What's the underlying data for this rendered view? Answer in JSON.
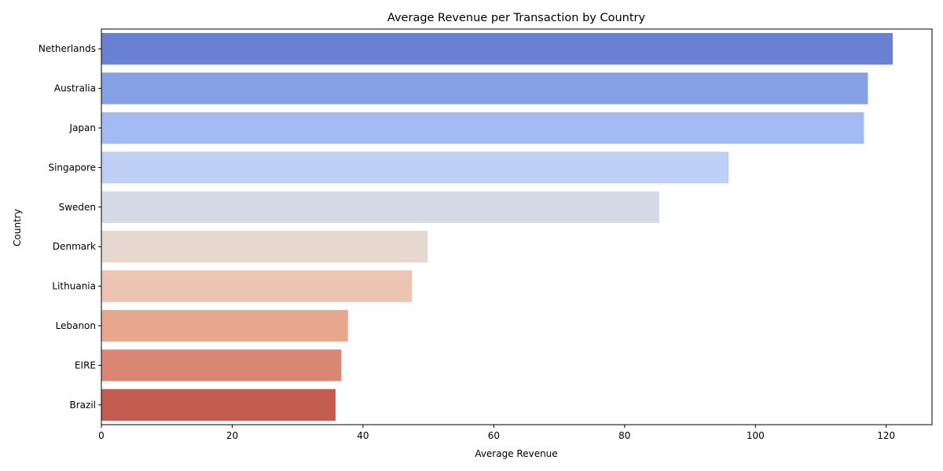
{
  "chart_data": {
    "type": "bar",
    "orientation": "horizontal",
    "title": "Average Revenue per Transaction by Country",
    "xlabel": "Average Revenue",
    "ylabel": "Country",
    "categories": [
      "Netherlands",
      "Australia",
      "Japan",
      "Singapore",
      "Sweden",
      "Denmark",
      "Lithuania",
      "Lebanon",
      "EIRE",
      "Brazil"
    ],
    "values": [
      121.0,
      117.2,
      116.6,
      95.9,
      85.3,
      49.9,
      47.5,
      37.7,
      36.7,
      35.8
    ],
    "colors": [
      "#6a80d3",
      "#86a0e6",
      "#a2bbf5",
      "#bdcff5",
      "#d5dbe6",
      "#e5d8cf",
      "#ecc4b2",
      "#e8a78e",
      "#da8773",
      "#c25c51"
    ],
    "xlim": [
      0,
      127
    ],
    "xticks": [
      0,
      20,
      40,
      60,
      80,
      100,
      120
    ],
    "grid": false,
    "legend": "none"
  }
}
